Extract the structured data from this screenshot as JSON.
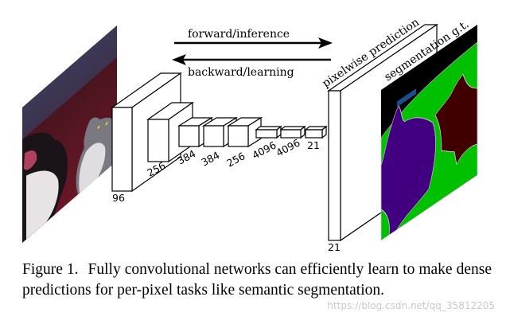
{
  "figure": {
    "arrows": {
      "forward_label": "forward/inference",
      "backward_label": "backward/learning"
    },
    "layers": [
      "96",
      "256",
      "384",
      "384",
      "256",
      "4096",
      "4096",
      "21"
    ],
    "prediction_label": "pixelwise prediction",
    "prediction_depth": "21",
    "groundtruth_label": "segmentation g.t.",
    "colors": {
      "background": "#000000",
      "green": "#00c000",
      "dog": "#400080",
      "cat": "#400000",
      "label_bar": "#1f4e8c"
    }
  },
  "caption": {
    "label": "Figure 1.",
    "text": "Fully convolutional networks can efficiently learn to make dense predictions for per-pixel tasks like semantic segmentation."
  },
  "watermark": "https://blog.csdn.net/qq_35812205"
}
